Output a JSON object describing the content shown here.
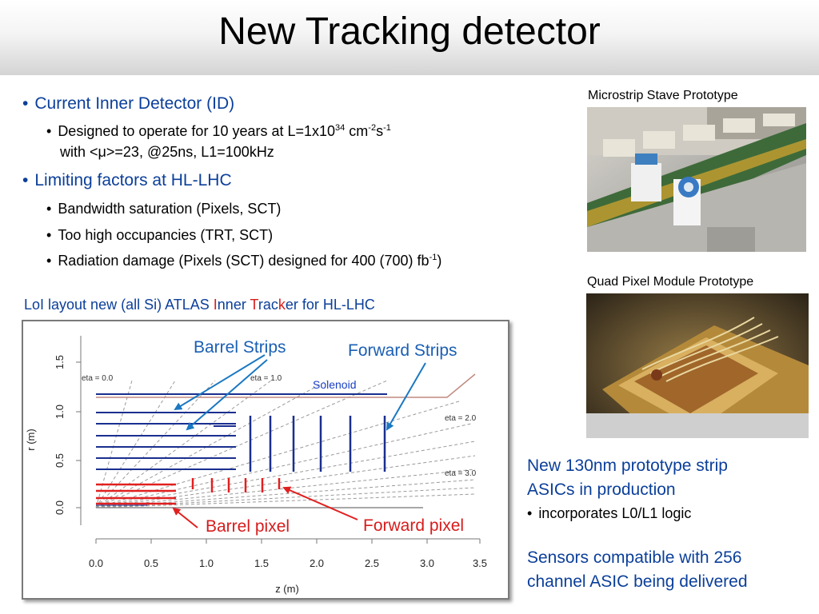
{
  "title": "New Tracking detector",
  "bullets": {
    "b1": "Current Inner Detector (ID)",
    "b1_sub1_line1_a": "Designed to operate for 10 years at L=1x10",
    "b1_sub1_line1_sup1": "34",
    "b1_sub1_line1_b": " cm",
    "b1_sub1_line1_sup2": "-2",
    "b1_sub1_line1_c": "s",
    "b1_sub1_line1_sup3": "-1",
    "b1_sub1_line2": "with <μ>=23, @25ns, L1=100kHz",
    "b2": "Limiting factors at HL-LHC",
    "b2_sub1": "Bandwidth saturation (Pixels, SCT)",
    "b2_sub2": "Too high occupancies (TRT, SCT)",
    "b2_sub3_a": "Radiation damage (Pixels (SCT) designed for  400 (700) fb",
    "b2_sub3_sup": "-1",
    "b2_sub3_b": ")"
  },
  "photos": {
    "stave_caption": "Microstrip Stave Prototype",
    "quad_caption": "Quad Pixel Module Prototype"
  },
  "layout_caption": {
    "p1": "LoI layout new (all Si) ATLAS ",
    "p2": "I",
    "p3": "nner ",
    "p4": "T",
    "p5": "rac",
    "p6": "k",
    "p7": "er for HL-LHC"
  },
  "diagram": {
    "ylabel": "r (m)",
    "xlabel": "z (m)",
    "x_ticks": [
      "0.0",
      "0.5",
      "1.0",
      "1.5",
      "2.0",
      "2.5",
      "3.0",
      "3.5"
    ],
    "y_ticks": [
      "0.0",
      "0.5",
      "1.0",
      "1.5"
    ],
    "eta_labels": [
      "eta = 0.0",
      "eta = 1.0",
      "eta = 2.0",
      "eta = 3.0"
    ],
    "solenoid_label": "Solenoid",
    "callouts": {
      "barrel_strips": "Barrel Strips",
      "forward_strips": "Forward Strips",
      "barrel_pixel": "Barrel pixel",
      "forward_pixel": "Forward pixel"
    },
    "colors": {
      "strips": "#1a2f8f",
      "pixels": "#e02020",
      "arrows": "#1a78c2"
    }
  },
  "right_text": {
    "asic_line1": "New 130nm prototype strip",
    "asic_line2": "ASICs in production",
    "asic_sub": "incorporates L0/L1 logic",
    "sensor_line1": "Sensors compatible with 256",
    "sensor_line2": "channel ASIC being delivered"
  },
  "bullet_glyph": "•",
  "colors": {
    "heading_blue": "#0b3f9a",
    "accent_red": "#d81b1b"
  }
}
